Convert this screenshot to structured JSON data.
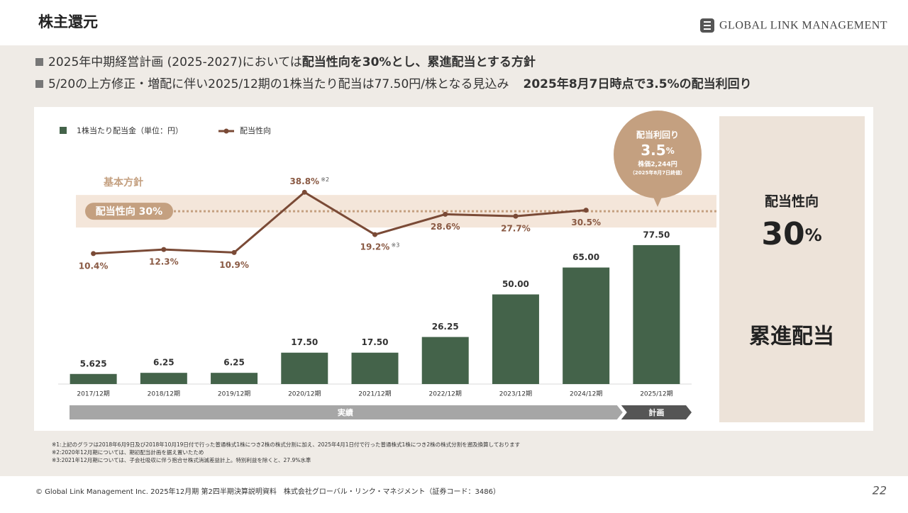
{
  "header": {
    "title": "株主還元",
    "logo": "GLOBAL LINK MANAGEMENT"
  },
  "bullets": [
    {
      "text": "2025年中期経営計画 (2025-2027)においては",
      "bold": "配当性向を30%とし、累進配当とする方針"
    },
    {
      "text": "5/20の上方修正・増配に伴い2025/12期の1株当たり配当は77.50円/株となる見込み",
      "bold": "2025年8月7日時点で3.5%の配当利回り"
    }
  ],
  "chart_data": {
    "type": "bar_line",
    "categories": [
      "2017/12期",
      "2018/12期",
      "2019/12期",
      "2020/12期",
      "2021/12期",
      "2022/12期",
      "2023/12期",
      "2024/12期",
      "2025/12期"
    ],
    "series": [
      {
        "name": "1株当たり配当金（単位：円）",
        "type": "bar",
        "color": "#44634a",
        "values": [
          5.625,
          6.25,
          6.25,
          17.5,
          17.5,
          26.25,
          50,
          65,
          77.5
        ],
        "value_labels": [
          "5.625",
          "6.25",
          "6.25",
          "17.50",
          "17.50",
          "26.25",
          "50.00",
          "65.00",
          "77.50"
        ]
      },
      {
        "name": "配当性向",
        "type": "line",
        "axis": "y2",
        "color": "#7a4a36",
        "values": [
          10.4,
          12.3,
          10.9,
          38.8,
          19.2,
          28.6,
          27.7,
          30.5,
          null
        ],
        "value_labels": [
          "10.4%",
          "12.3%",
          "10.9%",
          "38.8%",
          "19.2%",
          "28.6%",
          "27.7%",
          "30.5%",
          null
        ]
      }
    ],
    "ylim": [
      0,
      100
    ],
    "y2lim": [
      -50,
      33
    ],
    "annotations": [
      {
        "index": 3,
        "text": "※2"
      },
      {
        "index": 4,
        "text": "※3"
      }
    ],
    "reference": {
      "value": 30,
      "label": "配当性向 30%",
      "title": "基本方針",
      "color": "#c4a080"
    },
    "phases": [
      "実績",
      "計画"
    ],
    "legend": "top-left"
  },
  "bubble": {
    "title": "配当利回り",
    "value": "3.5",
    "unit": "%",
    "price": "株価2,244円",
    "date": "（2025年8月7日終値）"
  },
  "right_panel": {
    "title": "配当性向",
    "value": "30",
    "unit": "%",
    "policy": "累進配当"
  },
  "notes": [
    "※1:上記のグラフは2018年6月9日及び2018年10月19日付で行った普通株式1株につき2株の株式分割に加え、2025年4月1日付で行った普通株式1株につき2株の株式分割を遡及換算しております",
    "※2:2020年12月期については、期初配当計画を据え置いたため",
    "※3:2021年12月期については、子会社吸収に伴う抱合せ株式消滅差益計上。特別利益を除くと、27.9%水準"
  ],
  "footer": {
    "text": "© Global Link Management Inc. 2025年12月期 第2四半期決算説明資料　株式会社グローバル・リンク・マネジメント（証券コード：3486）",
    "page": "22"
  }
}
